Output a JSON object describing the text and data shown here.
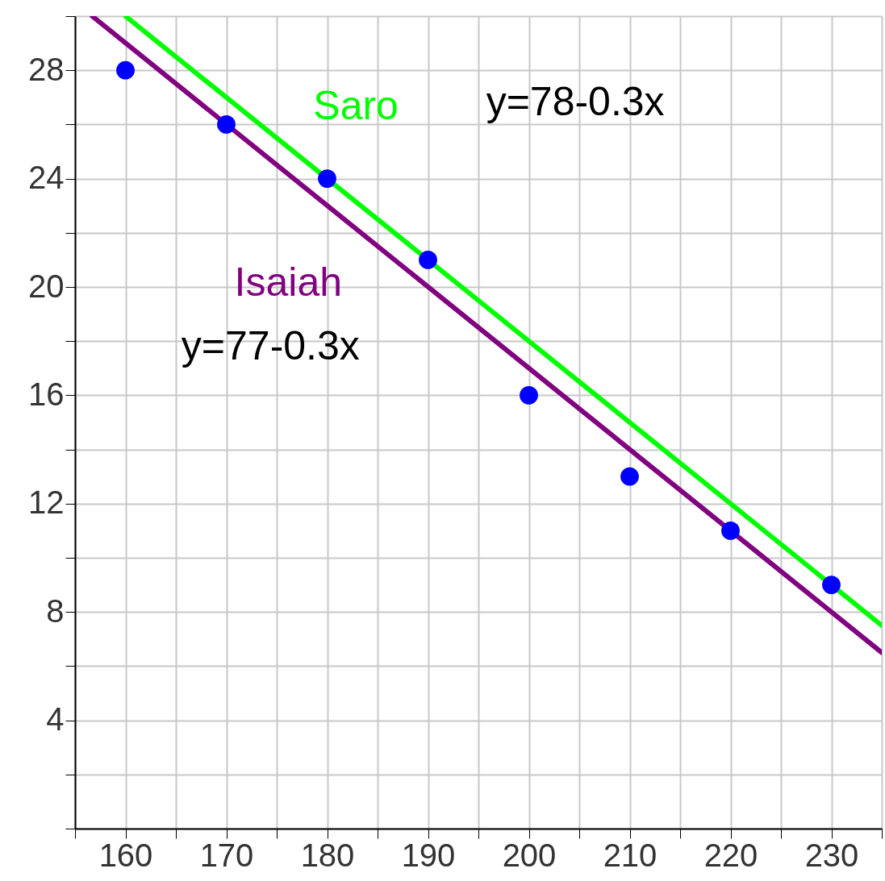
{
  "chart_data": {
    "type": "line",
    "xlim": [
      155,
      235
    ],
    "ylim": [
      0,
      30
    ],
    "xticks": [
      {
        "value": 155,
        "label": null
      },
      160,
      {
        "value": 165,
        "label": null
      },
      170,
      {
        "value": 175,
        "label": null
      },
      180,
      {
        "value": 185,
        "label": null
      },
      190,
      {
        "value": 195,
        "label": null
      },
      200,
      {
        "value": 205,
        "label": null
      },
      210,
      {
        "value": 215,
        "label": null
      },
      220,
      {
        "value": 225,
        "label": null
      },
      230,
      {
        "value": 235,
        "label": null
      }
    ],
    "yticks": [
      {
        "value": 0,
        "label": null
      },
      {
        "value": 2,
        "label": null
      },
      4,
      {
        "value": 6,
        "label": null
      },
      8,
      {
        "value": 10,
        "label": null
      },
      12,
      {
        "value": 14,
        "label": null
      },
      16,
      {
        "value": 18,
        "label": null
      },
      20,
      {
        "value": 22,
        "label": null
      },
      24,
      {
        "value": 26,
        "label": null
      },
      28,
      {
        "value": 30,
        "label": null
      }
    ],
    "grid": true,
    "series": [
      {
        "name": "Saro",
        "color": "#00ff00",
        "x": [
          160,
          235
        ],
        "values": [
          30,
          7.5
        ]
      },
      {
        "name": "Isaiah",
        "color": "#800080",
        "x": [
          156.7,
          235
        ],
        "values": [
          30,
          6.5
        ]
      },
      {
        "type": "scatter",
        "marker": "circle",
        "color": "#0000ff",
        "x": [
          160,
          170,
          180,
          190,
          200,
          210,
          220,
          230
        ],
        "values": [
          28,
          26,
          24,
          21,
          16,
          13,
          11,
          9
        ]
      }
    ],
    "annotations": [
      "y=78-0.3x",
      "y=77-0.3x"
    ]
  }
}
